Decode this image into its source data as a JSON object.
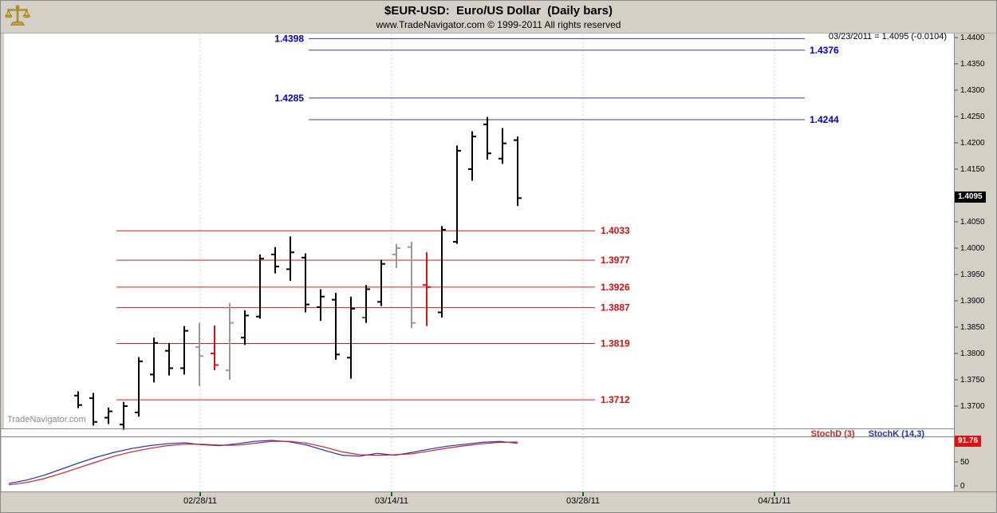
{
  "header": {
    "title": "$EUR-USD:  Euro/US Dollar  (Daily bars)",
    "subtitle": "www.TradeNavigator.com © 1999-2011 All rights reserved",
    "quote": "03/23/2011 = 1.4095 (-0.0104)"
  },
  "watermark": "TradeNavigator.com",
  "last_price_tag": "1.4095",
  "stoch_panel": {
    "d_label": "StochD (3)",
    "k_label": "StochK (14,3)",
    "value_tag": "91.76",
    "axis_labels": [
      "50",
      "0"
    ]
  },
  "chart_data": {
    "type": "ohlc-bar",
    "title": "$EUR-USD: Euro/US Dollar (Daily bars)",
    "symbol": "$EUR-USD",
    "description": "Euro/US Dollar",
    "period": "Daily bars",
    "last_quote": {
      "date": "03/23/2011",
      "close": 1.4095,
      "change": -0.0104
    },
    "ylim": [
      1.365,
      1.4405
    ],
    "price_axis_labels": [
      "1.4400",
      "1.4350",
      "1.4300",
      "1.4250",
      "1.4200",
      "1.4150",
      "1.4100",
      "1.4050",
      "1.4000",
      "1.3950",
      "1.3900",
      "1.3850",
      "1.3800",
      "1.3750",
      "1.3700"
    ],
    "resistance_levels": [
      {
        "label": "1.4398",
        "price": 1.4398,
        "side": "left"
      },
      {
        "label": "1.4376",
        "price": 1.4376,
        "side": "right"
      },
      {
        "label": "1.4285",
        "price": 1.4285,
        "side": "left"
      },
      {
        "label": "1.4244",
        "price": 1.4244,
        "side": "right"
      }
    ],
    "support_levels": [
      {
        "label": "1.4033",
        "price": 1.4033
      },
      {
        "label": "1.3977",
        "price": 1.3977
      },
      {
        "label": "1.3926",
        "price": 1.3926
      },
      {
        "label": "1.3887",
        "price": 1.3887
      },
      {
        "label": "1.3819",
        "price": 1.3819
      },
      {
        "label": "1.3712",
        "price": 1.3712
      }
    ],
    "bars": [
      {
        "o": 1.372,
        "h": 1.3728,
        "l": 1.3696,
        "c": 1.3702,
        "color": "black"
      },
      {
        "o": 1.3715,
        "h": 1.3725,
        "l": 1.3663,
        "c": 1.367,
        "color": "black"
      },
      {
        "o": 1.3678,
        "h": 1.3697,
        "l": 1.3666,
        "c": 1.369,
        "color": "black"
      },
      {
        "o": 1.3665,
        "h": 1.3708,
        "l": 1.3655,
        "c": 1.37,
        "color": "black"
      },
      {
        "o": 1.3688,
        "h": 1.3793,
        "l": 1.368,
        "c": 1.3785,
        "color": "black"
      },
      {
        "o": 1.376,
        "h": 1.383,
        "l": 1.3745,
        "c": 1.382,
        "color": "black"
      },
      {
        "o": 1.3805,
        "h": 1.382,
        "l": 1.3758,
        "c": 1.3772,
        "color": "black"
      },
      {
        "o": 1.3772,
        "h": 1.3852,
        "l": 1.376,
        "c": 1.3843,
        "color": "black"
      },
      {
        "o": 1.3812,
        "h": 1.3858,
        "l": 1.3738,
        "c": 1.3795,
        "color": "gray"
      },
      {
        "o": 1.38,
        "h": 1.3853,
        "l": 1.3768,
        "c": 1.3778,
        "color": "red"
      },
      {
        "o": 1.3768,
        "h": 1.3896,
        "l": 1.375,
        "c": 1.3858,
        "color": "gray"
      },
      {
        "o": 1.383,
        "h": 1.3882,
        "l": 1.3816,
        "c": 1.3872,
        "color": "black"
      },
      {
        "o": 1.387,
        "h": 1.3988,
        "l": 1.3866,
        "c": 1.398,
        "color": "black"
      },
      {
        "o": 1.3988,
        "h": 1.4002,
        "l": 1.3952,
        "c": 1.3965,
        "color": "black"
      },
      {
        "o": 1.396,
        "h": 1.4022,
        "l": 1.3938,
        "c": 1.3992,
        "color": "black"
      },
      {
        "o": 1.3982,
        "h": 1.399,
        "l": 1.3878,
        "c": 1.3893,
        "color": "black"
      },
      {
        "o": 1.3888,
        "h": 1.3922,
        "l": 1.3862,
        "c": 1.3908,
        "color": "black"
      },
      {
        "o": 1.3902,
        "h": 1.3915,
        "l": 1.3788,
        "c": 1.3798,
        "color": "black"
      },
      {
        "o": 1.3792,
        "h": 1.3908,
        "l": 1.3752,
        "c": 1.3885,
        "color": "black"
      },
      {
        "o": 1.3868,
        "h": 1.393,
        "l": 1.3858,
        "c": 1.3922,
        "color": "black",
        "o_color": "green"
      },
      {
        "o": 1.3898,
        "h": 1.3978,
        "l": 1.389,
        "c": 1.397,
        "color": "black"
      },
      {
        "o": 1.3988,
        "h": 1.4008,
        "l": 1.3962,
        "c": 1.4,
        "color": "gray"
      },
      {
        "o": 1.4002,
        "h": 1.4012,
        "l": 1.3848,
        "c": 1.3858,
        "color": "gray"
      },
      {
        "o": 1.393,
        "h": 1.3992,
        "l": 1.3852,
        "c": 1.3926,
        "color": "red"
      },
      {
        "o": 1.3878,
        "h": 1.4042,
        "l": 1.3868,
        "c": 1.4035,
        "color": "black"
      },
      {
        "o": 1.4012,
        "h": 1.4195,
        "l": 1.4008,
        "c": 1.4185,
        "color": "black"
      },
      {
        "o": 1.415,
        "h": 1.4222,
        "l": 1.4128,
        "c": 1.4212,
        "color": "black"
      },
      {
        "o": 1.4235,
        "h": 1.4249,
        "l": 1.4168,
        "c": 1.418,
        "color": "black"
      },
      {
        "o": 1.417,
        "h": 1.4228,
        "l": 1.416,
        "c": 1.4199,
        "color": "black"
      },
      {
        "o": 1.4205,
        "h": 1.4212,
        "l": 1.408,
        "c": 1.4095,
        "color": "black"
      }
    ],
    "date_axis_labels": [
      "02/28/11",
      "03/14/11",
      "03/28/11",
      "04/11/11"
    ],
    "indicator": {
      "name": "Stochastic",
      "ylim": [
        0,
        100
      ],
      "current_d": 91.76,
      "k": [
        5,
        12,
        22,
        35,
        48,
        60,
        70,
        78,
        84,
        88,
        90,
        86,
        84,
        88,
        93,
        95,
        92,
        85,
        74,
        64,
        62,
        68,
        64,
        70,
        77,
        83,
        87,
        91,
        93,
        89
      ],
      "d": [
        2,
        7,
        15,
        26,
        38,
        50,
        62,
        71,
        78,
        84,
        87,
        87,
        85,
        85,
        89,
        93,
        93,
        89,
        81,
        71,
        65,
        64,
        65,
        67,
        73,
        79,
        84,
        88,
        91,
        91.76
      ]
    }
  },
  "colors": {
    "panel_bg": "#d4d0c8",
    "resistance_line": "#3c3c96",
    "resistance_label": "#0000cc",
    "support_line": "#cc2020",
    "support_label": "#cc1111",
    "bar_black": "#000000",
    "bar_gray": "#999999",
    "bar_red": "#dd1111",
    "bar_green_tick": "#118811",
    "stoch_k": "#2233bb",
    "stoch_d": "#cc2222",
    "price_tag_bg": "#000000",
    "stoch_tag_bg": "#e01010",
    "gridline": "#cdcdcd",
    "frame": "#8a8a8a",
    "date_tick": "#007700"
  }
}
